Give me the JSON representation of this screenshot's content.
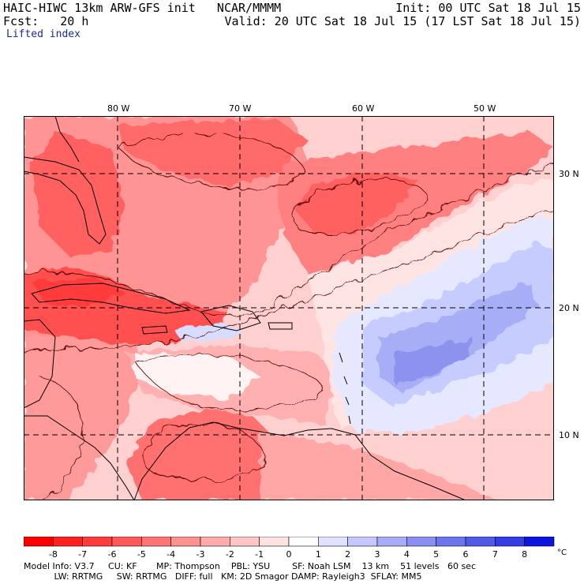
{
  "header": {
    "line1_left": "HAIC-HIWC 13km ARW-GFS init   NCAR/MMMM",
    "line1_right": "Init: 00 UTC Sat 18 Jul 15",
    "line2_left": "Fcst:   20 h",
    "line2_right": "Valid: 20 UTC Sat 18 Jul 15 (17 LST Sat 18 Jul 15)",
    "field_name": "Lifted index"
  },
  "map": {
    "lon_labels": [
      "80 W",
      "70 W",
      "60 W",
      "50 W"
    ],
    "lat_labels": [
      "30 N",
      "20 N",
      "10 N"
    ],
    "colors": {
      "n8": "#ff2020",
      "n7": "#ff3b3b",
      "n6": "#ff5858",
      "n5": "#ff7474",
      "n4": "#ff9090",
      "n3": "#ffabab",
      "n2": "#ffc6c6",
      "n1": "#ffe2e2",
      "p0": "#ffffff",
      "p1": "#e0e2ff",
      "p2": "#c4c8ff",
      "p3": "#a6acfa",
      "p4": "#8a90f2",
      "p5": "#6e74ec",
      "p6": "#5258e8",
      "p7": "#363ce4",
      "p8": "#0c14e0"
    }
  },
  "colorbar": {
    "labels": [
      "-8",
      "-7",
      "-6",
      "-5",
      "-4",
      "-3",
      "-2",
      "-1",
      "0",
      "1",
      "2",
      "3",
      "4",
      "5",
      "6",
      "7",
      "8"
    ],
    "unit": "°C",
    "swatches": [
      "#ff2020",
      "#ff3b3b",
      "#ff5858",
      "#ff7474",
      "#ff9090",
      "#ffabab",
      "#ffc6c6",
      "#ffe2e2",
      "#ffffff",
      "#e0e2ff",
      "#c4c8ff",
      "#a6acfa",
      "#8a90f2",
      "#6e74ec",
      "#5258e8",
      "#363ce4",
      "#0c14e0"
    ]
  },
  "footer": {
    "line1": "Model Info: V3.7     CU: KF       MP: Thompson    PBL: YSU        SF: Noah LSM    13 km    51 levels   60 sec",
    "line2": "           LW: RRTMG     SW: RRTMG   DIFF: full   KM: 2D Smagor DAMP: Rayleigh3  SFLAY: MM5"
  }
}
